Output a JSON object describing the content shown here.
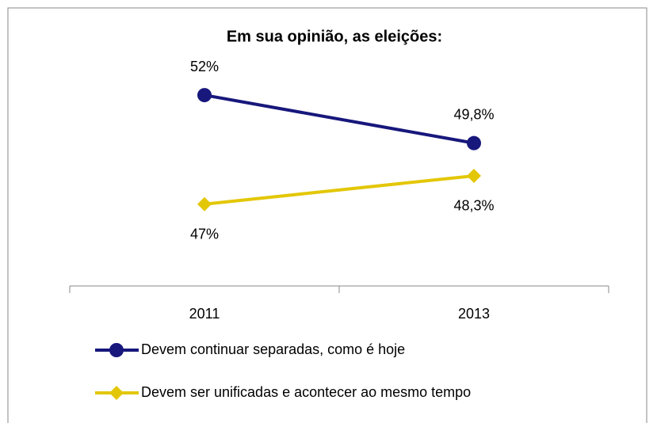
{
  "chart_data": {
    "type": "line",
    "title": "Em sua opinião, as eleições:",
    "categories": [
      "2011",
      "2013"
    ],
    "series": [
      {
        "name": "Devem continuar separadas, como é hoje",
        "color": "#17177c",
        "marker": "circle",
        "values": [
          52,
          49.8
        ],
        "value_labels": [
          "52%",
          "49,8%"
        ],
        "label_position": "above"
      },
      {
        "name": "Devem ser unificadas e acontecer ao mesmo tempo",
        "color": "#e3c707",
        "marker": "diamond",
        "values": [
          47,
          48.3
        ],
        "value_labels": [
          "47%",
          "48,3%"
        ],
        "label_position": "below"
      }
    ],
    "ylim": [
      43.25,
      54
    ],
    "legend": "bottom"
  }
}
